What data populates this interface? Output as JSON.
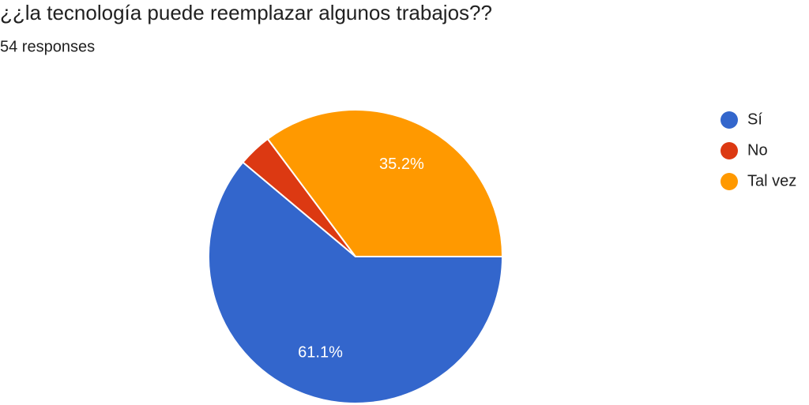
{
  "chart_data": {
    "type": "pie",
    "title": "¿¿la tecnología puede reemplazar algunos trabajos??",
    "subtitle": "54 responses",
    "categories": [
      "Sí",
      "No",
      "Tal vez"
    ],
    "values": [
      61.1,
      3.7,
      35.2
    ],
    "value_labels": [
      "61.1%",
      null,
      "35.2%"
    ],
    "colors": [
      "#3366cc",
      "#dc3912",
      "#ff9900"
    ],
    "legend": "right"
  }
}
